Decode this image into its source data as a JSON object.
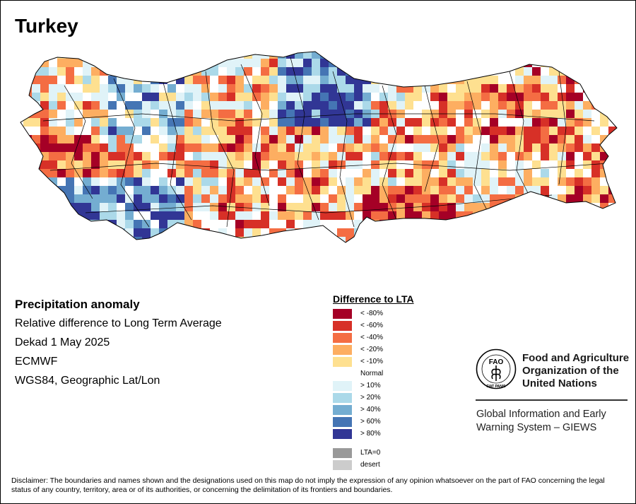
{
  "map": {
    "title": "Turkey"
  },
  "info": {
    "heading": "Precipitation anomaly",
    "lines": [
      "Relative difference to Long Term Average",
      "Dekad 1 May 2025",
      "ECMWF",
      "WGS84, Geographic Lat/Lon"
    ]
  },
  "legend": {
    "title": "Difference to LTA",
    "items": [
      {
        "label": "< -80%",
        "color": "#a50026"
      },
      {
        "label": "< -60%",
        "color": "#d73027"
      },
      {
        "label": "< -40%",
        "color": "#f46d43"
      },
      {
        "label": "< -20%",
        "color": "#fdae61"
      },
      {
        "label": "< -10%",
        "color": "#fee090"
      },
      {
        "label": "Normal",
        "color": "#ffffff"
      },
      {
        "label": "> 10%",
        "color": "#e0f3f8"
      },
      {
        "label": "> 20%",
        "color": "#abd9e9"
      },
      {
        "label": "> 40%",
        "color": "#74add1"
      },
      {
        "label": "> 60%",
        "color": "#4575b4"
      },
      {
        "label": "> 80%",
        "color": "#313695"
      }
    ],
    "extra_items": [
      {
        "label": "LTA=0",
        "color": "#999999"
      },
      {
        "label": "desert",
        "color": "#cccccc"
      }
    ]
  },
  "organization": {
    "logo_letters": "FAO",
    "logo_motto": "FIAT PANIS",
    "name_lines": [
      "Food and Agriculture",
      "Organization of the",
      "United Nations"
    ],
    "system_lines": [
      "Global Information and Early",
      "Warning System – GIEWS"
    ]
  },
  "disclaimer": "Disclaimer: The boundaries and names shown and the designations used on this map do not imply the expression of any opinion whatsoever on the part of FAO concerning the legal status of any country, territory, area or of its authorities, or concerning the delimitation of its frontiers and boundaries."
}
